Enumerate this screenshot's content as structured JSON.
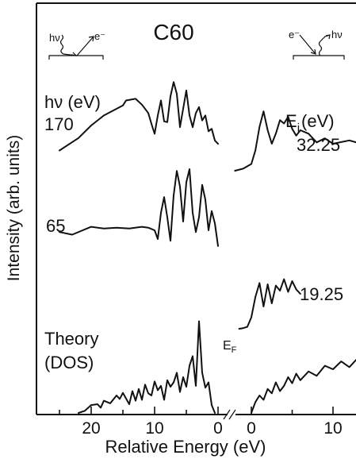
{
  "chart_data": {
    "type": "line",
    "title": "C60",
    "ylabel": "Intensity (arb. units)",
    "xlabel": "Relative Energy (eV)",
    "axis_break": "E_F",
    "left_panel": {
      "header": "hν (eV)",
      "x_ticks": [
        "20",
        "10",
        "0"
      ],
      "xlim": [
        25,
        -1
      ]
    },
    "right_panel": {
      "header_main": "E",
      "header_sub": "i",
      "header_unit": "(eV)",
      "x_ticks": [
        "0",
        "10"
      ],
      "xlim": [
        -2,
        15
      ]
    },
    "fermi_label_main": "E",
    "fermi_label_sub": "F",
    "series_labels": {
      "hv170": "170",
      "hv65": "65",
      "ei32": "32.25",
      "ei19": "19.25",
      "theory_line1": "Theory",
      "theory_line2": "(DOS)"
    },
    "series": [
      {
        "name": "170",
        "panel": "left",
        "x": [
          25,
          22,
          20,
          18,
          16,
          15,
          14.5,
          13,
          12,
          11,
          10.5,
          10,
          9.5,
          9,
          8.5,
          8,
          7.5,
          7,
          6.5,
          6,
          5.5,
          5,
          4.5,
          4,
          3.5,
          3.0,
          2.5,
          2.0,
          1.5,
          1.0,
          0.5,
          0
        ],
        "y": [
          10,
          25,
          40,
          52,
          60,
          64,
          70,
          72,
          65,
          55,
          42,
          30,
          52,
          70,
          45,
          44,
          75,
          92,
          78,
          38,
          60,
          82,
          52,
          38,
          55,
          62,
          46,
          52,
          33,
          36,
          22,
          18
        ]
      },
      {
        "name": "32.25",
        "panel": "right",
        "x": [
          -2,
          -1,
          0,
          0.5,
          1,
          1.5,
          2,
          2.5,
          3,
          3.5,
          4,
          4.5,
          5,
          5.5,
          6,
          7,
          8,
          9,
          10,
          12,
          14,
          15
        ],
        "y": [
          0,
          3,
          10,
          30,
          65,
          88,
          60,
          40,
          55,
          75,
          70,
          80,
          62,
          52,
          60,
          55,
          42,
          48,
          40,
          45,
          38,
          32
        ]
      },
      {
        "name": "65",
        "panel": "left",
        "x": [
          25,
          23,
          20,
          18,
          16,
          14,
          12,
          11,
          10,
          9.5,
          9,
          8.5,
          8,
          7.5,
          7,
          6.5,
          6,
          5.5,
          5,
          4.5,
          4,
          3.5,
          3,
          2.5,
          2,
          1.5,
          1.0,
          0.5,
          0
        ],
        "y": [
          18,
          15,
          24,
          22,
          23,
          22,
          24,
          23,
          20,
          10,
          40,
          58,
          35,
          8,
          60,
          88,
          70,
          30,
          75,
          90,
          40,
          18,
          35,
          72,
          55,
          20,
          42,
          28,
          2
        ]
      },
      {
        "name": "19.25",
        "panel": "right",
        "x": [
          -1.5,
          -1,
          -0.5,
          0,
          0.5,
          1,
          1.5,
          2,
          2.5,
          3,
          3.5,
          4,
          4.5,
          5,
          5.5,
          6
        ],
        "y": [
          0,
          1,
          3,
          18,
          50,
          72,
          35,
          70,
          40,
          68,
          60,
          78,
          58,
          75,
          62,
          55
        ]
      },
      {
        "name": "Theory (DOS)",
        "panel": "left",
        "x": [
          22,
          21,
          20,
          19,
          18.5,
          18,
          17,
          16,
          15.5,
          15,
          14,
          13.5,
          13,
          12.5,
          12,
          11.5,
          11,
          10.5,
          10,
          9.5,
          9,
          8.5,
          8,
          7.5,
          7,
          6.5,
          6,
          5.5,
          5,
          4.5,
          4,
          3.5,
          3,
          2.5,
          2,
          1.5,
          1,
          0.5
        ],
        "y": [
          0,
          5,
          18,
          20,
          12,
          28,
          22,
          40,
          32,
          46,
          20,
          50,
          28,
          55,
          30,
          65,
          45,
          40,
          72,
          52,
          62,
          30,
          75,
          60,
          70,
          92,
          48,
          82,
          60,
          108,
          130,
          62,
          210,
          92,
          58,
          70,
          18,
          0
        ]
      },
      {
        "name": "Theory (DOS) right",
        "panel": "right",
        "x": [
          0,
          0.5,
          1,
          1.5,
          2,
          2.5,
          3,
          3.5,
          4,
          4.5,
          5,
          5.5,
          6,
          7,
          8,
          9,
          10,
          11,
          12,
          13,
          14,
          14.5,
          15
        ],
        "y": [
          0,
          25,
          40,
          30,
          55,
          45,
          70,
          50,
          62,
          82,
          68,
          90,
          75,
          95,
          85,
          108,
          100,
          118,
          105,
          125,
          115,
          135,
          150
        ]
      }
    ]
  }
}
